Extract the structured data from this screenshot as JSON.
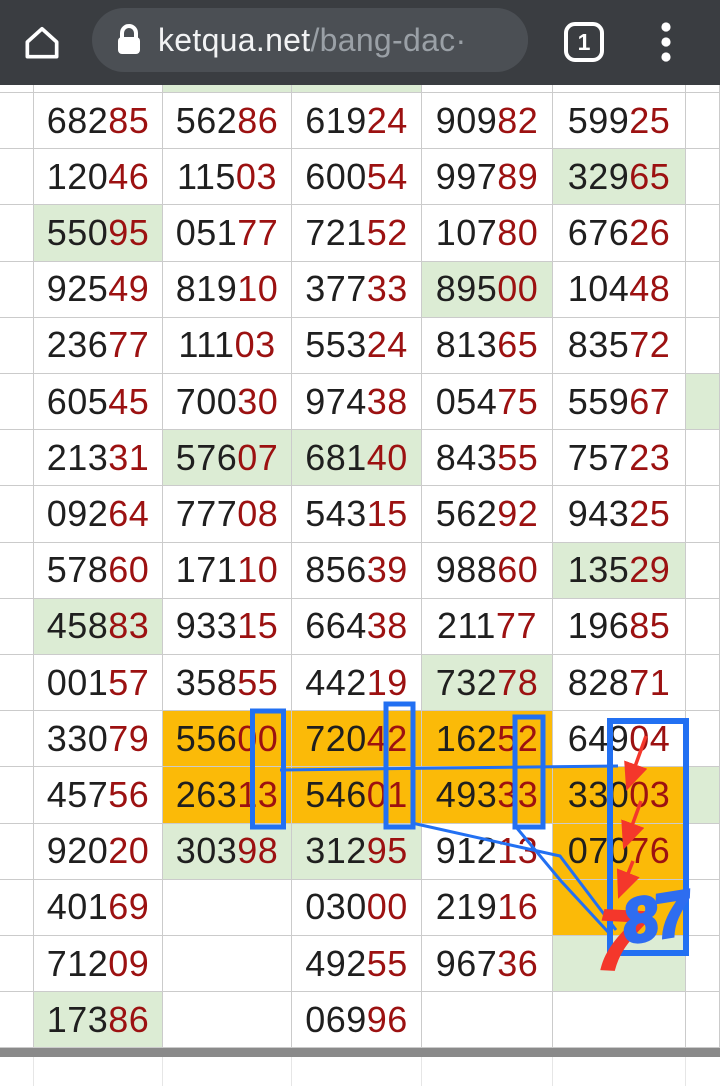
{
  "browser": {
    "home_icon": "home-outline",
    "lock_icon": "padlock",
    "url_host": "ketqua.net",
    "url_path": "/bang-dac·",
    "tab_count": "1",
    "menu_icon": "three-dot-kebab"
  },
  "table": {
    "partial_top_row_bg": [
      "w",
      "w",
      "g",
      "g",
      "w",
      "w",
      "w"
    ],
    "rows": [
      {
        "cells": [
          {
            "v": "68285",
            "bg": "w"
          },
          {
            "v": "56286",
            "bg": "w"
          },
          {
            "v": "61924",
            "bg": "w"
          },
          {
            "v": "90982",
            "bg": "w"
          },
          {
            "v": "59925",
            "bg": "w"
          }
        ],
        "sliver": "w"
      },
      {
        "cells": [
          {
            "v": "12046",
            "bg": "w"
          },
          {
            "v": "11503",
            "bg": "w"
          },
          {
            "v": "60054",
            "bg": "w"
          },
          {
            "v": "99789",
            "bg": "w"
          },
          {
            "v": "32965",
            "bg": "g"
          }
        ],
        "sliver": "w"
      },
      {
        "cells": [
          {
            "v": "55095",
            "bg": "g"
          },
          {
            "v": "05177",
            "bg": "w"
          },
          {
            "v": "72152",
            "bg": "w"
          },
          {
            "v": "10780",
            "bg": "w"
          },
          {
            "v": "67626",
            "bg": "w"
          }
        ],
        "sliver": "w"
      },
      {
        "cells": [
          {
            "v": "92549",
            "bg": "w"
          },
          {
            "v": "81910",
            "bg": "w"
          },
          {
            "v": "37733",
            "bg": "w"
          },
          {
            "v": "89500",
            "bg": "g"
          },
          {
            "v": "10448",
            "bg": "w"
          }
        ],
        "sliver": "w"
      },
      {
        "cells": [
          {
            "v": "23677",
            "bg": "w"
          },
          {
            "v": "11103",
            "bg": "w"
          },
          {
            "v": "55324",
            "bg": "w"
          },
          {
            "v": "81365",
            "bg": "w"
          },
          {
            "v": "83572",
            "bg": "w"
          }
        ],
        "sliver": "w"
      },
      {
        "cells": [
          {
            "v": "60545",
            "bg": "w"
          },
          {
            "v": "70030",
            "bg": "w"
          },
          {
            "v": "97438",
            "bg": "w"
          },
          {
            "v": "05475",
            "bg": "w"
          },
          {
            "v": "55967",
            "bg": "w"
          }
        ],
        "sliver": "g"
      },
      {
        "cells": [
          {
            "v": "21331",
            "bg": "w"
          },
          {
            "v": "57607",
            "bg": "g"
          },
          {
            "v": "68140",
            "bg": "g"
          },
          {
            "v": "84355",
            "bg": "w"
          },
          {
            "v": "75723",
            "bg": "w"
          }
        ],
        "sliver": "w"
      },
      {
        "cells": [
          {
            "v": "09264",
            "bg": "w"
          },
          {
            "v": "77708",
            "bg": "w"
          },
          {
            "v": "54315",
            "bg": "w"
          },
          {
            "v": "56292",
            "bg": "w"
          },
          {
            "v": "94325",
            "bg": "w"
          }
        ],
        "sliver": "w"
      },
      {
        "cells": [
          {
            "v": "57860",
            "bg": "w"
          },
          {
            "v": "17110",
            "bg": "w"
          },
          {
            "v": "85639",
            "bg": "w"
          },
          {
            "v": "98860",
            "bg": "w"
          },
          {
            "v": "13529",
            "bg": "g"
          }
        ],
        "sliver": "w"
      },
      {
        "cells": [
          {
            "v": "45883",
            "bg": "g"
          },
          {
            "v": "93315",
            "bg": "w"
          },
          {
            "v": "66438",
            "bg": "w"
          },
          {
            "v": "21177",
            "bg": "w"
          },
          {
            "v": "19685",
            "bg": "w"
          }
        ],
        "sliver": "w"
      },
      {
        "cells": [
          {
            "v": "00157",
            "bg": "w"
          },
          {
            "v": "35855",
            "bg": "w"
          },
          {
            "v": "44219",
            "bg": "w"
          },
          {
            "v": "73278",
            "bg": "g"
          },
          {
            "v": "82871",
            "bg": "w"
          }
        ],
        "sliver": "w"
      },
      {
        "cells": [
          {
            "v": "33079",
            "bg": "w"
          },
          {
            "v": "55600",
            "bg": "o"
          },
          {
            "v": "72042",
            "bg": "o"
          },
          {
            "v": "16252",
            "bg": "o"
          },
          {
            "v": "64904",
            "bg": "w"
          }
        ],
        "sliver": "w"
      },
      {
        "cells": [
          {
            "v": "45756",
            "bg": "w"
          },
          {
            "v": "26313",
            "bg": "o"
          },
          {
            "v": "54601",
            "bg": "o"
          },
          {
            "v": "49333",
            "bg": "o"
          },
          {
            "v": "33003",
            "bg": "o"
          }
        ],
        "sliver": "g"
      },
      {
        "cells": [
          {
            "v": "92020",
            "bg": "w"
          },
          {
            "v": "30398",
            "bg": "g"
          },
          {
            "v": "31295",
            "bg": "g"
          },
          {
            "v": "91213",
            "bg": "w"
          },
          {
            "v": "07076",
            "bg": "o"
          }
        ],
        "sliver": "w"
      },
      {
        "cells": [
          {
            "v": "40169",
            "bg": "w"
          },
          {
            "v": "",
            "bg": "w"
          },
          {
            "v": "03000",
            "bg": "w"
          },
          {
            "v": "21916",
            "bg": "w"
          },
          {
            "v": "",
            "bg": "o"
          }
        ],
        "sliver": "w"
      },
      {
        "cells": [
          {
            "v": "71209",
            "bg": "w"
          },
          {
            "v": "",
            "bg": "w"
          },
          {
            "v": "49255",
            "bg": "w"
          },
          {
            "v": "96736",
            "bg": "w"
          },
          {
            "v": "",
            "bg": "g"
          }
        ],
        "sliver": "w"
      },
      {
        "cells": [
          {
            "v": "17386",
            "bg": "g"
          },
          {
            "v": "",
            "bg": "w"
          },
          {
            "v": "06996",
            "bg": "w"
          },
          {
            "v": "",
            "bg": "w"
          },
          {
            "v": "",
            "bg": "w"
          }
        ],
        "sliver": "w"
      }
    ]
  },
  "annotations": {
    "red_text": "7",
    "blue_text": "87"
  },
  "colors": {
    "bar_bg": "#3a3d41",
    "omnibox_bg": "#4b4f54",
    "cell_green": "#dcecd4",
    "cell_orange": "#fbba08",
    "digit_black": "#1f1f1f",
    "digit_red": "#9c1111",
    "annotation_blue": "#2270f2",
    "annotation_red": "#f4372b",
    "grid_border": "#cbcbcb",
    "divider_gray": "#8a8a8a"
  }
}
